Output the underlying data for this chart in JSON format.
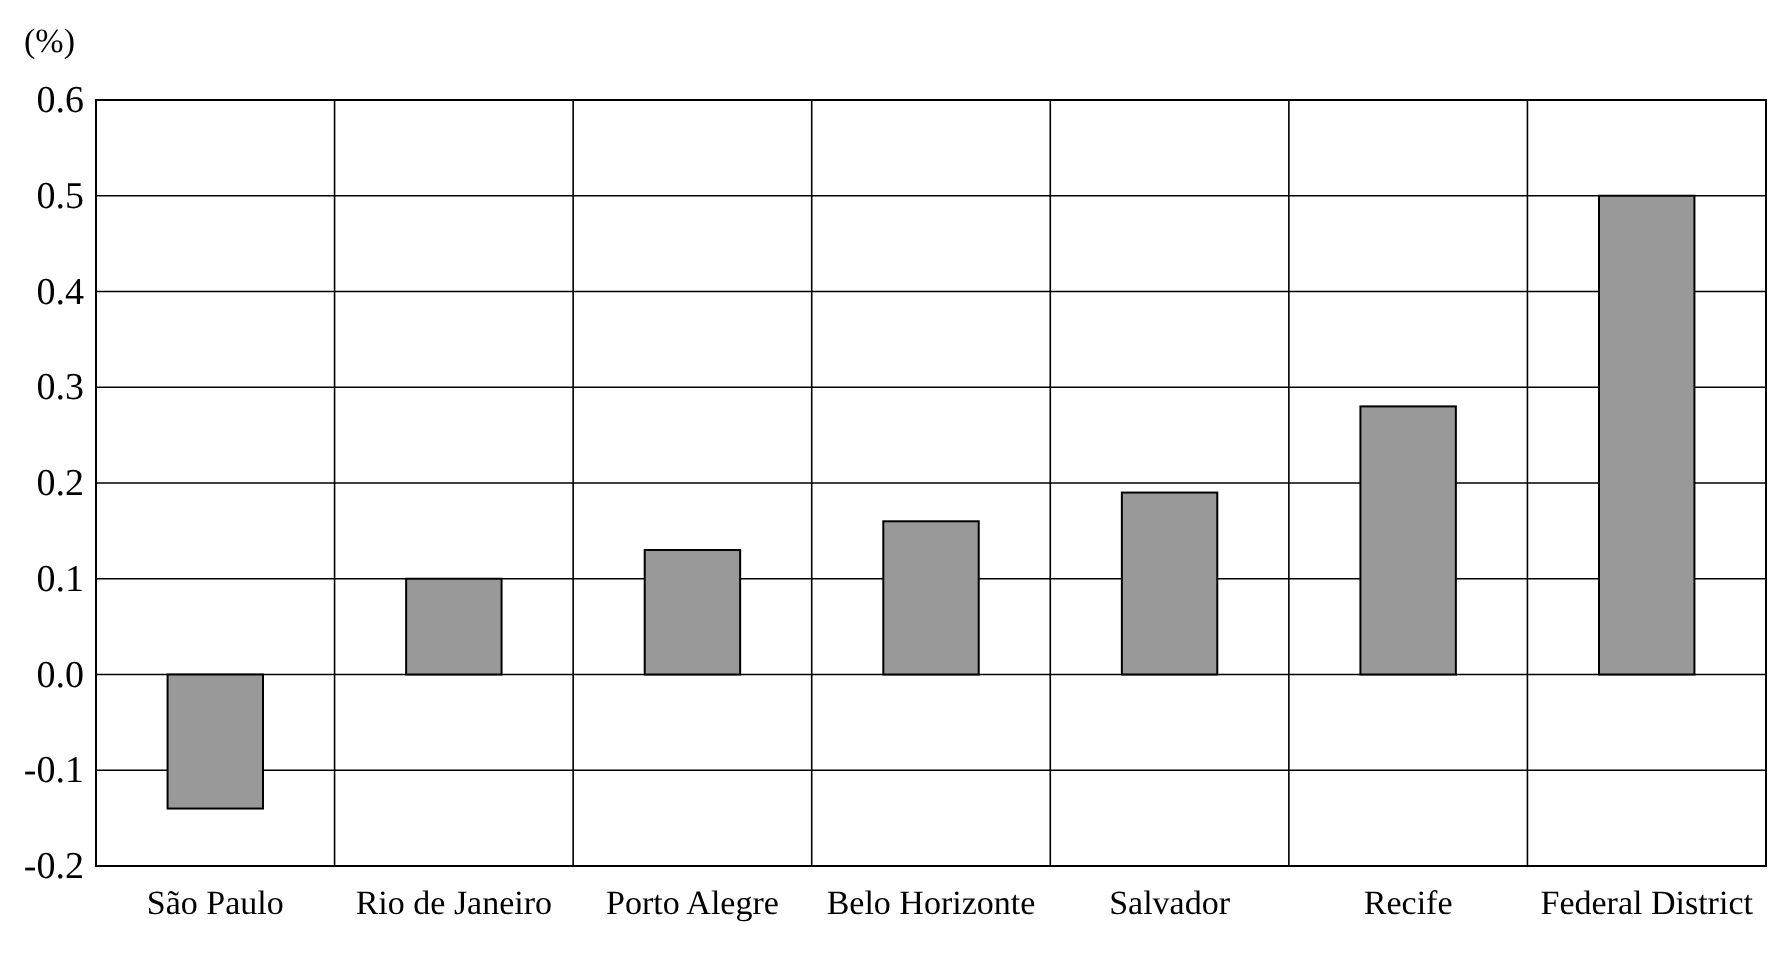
{
  "chart_data": {
    "type": "bar",
    "ylabel": "(%)",
    "categories": [
      "São Paulo",
      "Rio de Janeiro",
      "Porto Alegre",
      "Belo Horizonte",
      "Salvador",
      "Recife",
      "Federal District"
    ],
    "values": [
      -0.14,
      0.1,
      0.13,
      0.16,
      0.19,
      0.28,
      0.5
    ],
    "color": "#999999",
    "ylim": [
      -0.2,
      0.6
    ],
    "yticks": [
      {
        "value": -0.2,
        "label": "-0.2"
      },
      {
        "value": -0.1,
        "label": "-0.1"
      },
      {
        "value": 0,
        "label": "0.0"
      },
      {
        "value": 0.1,
        "label": "0.1"
      },
      {
        "value": 0.2,
        "label": "0.2"
      },
      {
        "value": 0.3,
        "label": "0.3"
      },
      {
        "value": 0.4,
        "label": "0.4"
      },
      {
        "value": 0.5,
        "label": "0.5"
      },
      {
        "value": 0.6,
        "label": "0.6"
      }
    ],
    "grid": true
  }
}
